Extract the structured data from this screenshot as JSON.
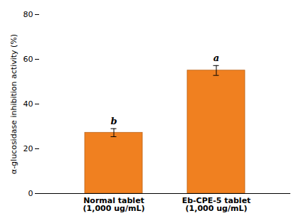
{
  "chart_data": {
    "type": "bar",
    "categories": [
      "Normal tablet\n(1,000 ug/mL)",
      "Eb-CPE-5 tablet\n(1,000 ug/mL)"
    ],
    "values": [
      27.2,
      55.0
    ],
    "errors": [
      1.8,
      2.2
    ],
    "letters": [
      "b",
      "a"
    ],
    "color": "#F08020",
    "ylabel": "α-glucosidase inhibition activity (%)",
    "ylim": [
      0,
      80
    ],
    "yticks": [
      0,
      20,
      40,
      60,
      80
    ],
    "grid": false
  }
}
